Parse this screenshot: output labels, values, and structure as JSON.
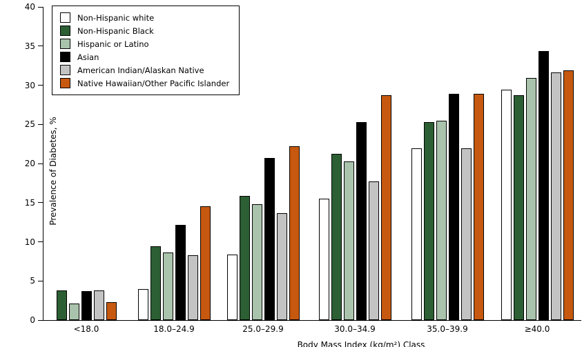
{
  "chart_data": {
    "type": "bar",
    "title": "",
    "ylabel": "Prevalence of Diabetes, %",
    "xlabel": "Body Mass Index (kg/m²) Class",
    "ylim": [
      0,
      40
    ],
    "yticks": [
      0,
      5,
      10,
      15,
      20,
      25,
      30,
      35,
      40
    ],
    "grid": false,
    "legend_position": "top-left",
    "bar_outline_color": "#000000",
    "categories": [
      "<18.0",
      "18.0–24.9",
      "25.0–29.9",
      "30.0–34.9",
      "35.0–39.9",
      "≥40.0"
    ],
    "series": [
      {
        "name": "Non-Hispanic white",
        "color": "#ffffff",
        "values": [
          null,
          4.0,
          8.4,
          15.5,
          21.9,
          29.4
        ]
      },
      {
        "name": "Non-Hispanic Black",
        "color": "#2c5f33",
        "values": [
          3.8,
          9.4,
          15.9,
          21.2,
          25.3,
          28.7
        ]
      },
      {
        "name": "Hispanic or Latino",
        "color": "#aac3ac",
        "values": [
          2.1,
          8.6,
          14.8,
          20.3,
          25.5,
          30.9
        ]
      },
      {
        "name": "Asian",
        "color": "#000000",
        "values": [
          3.7,
          12.2,
          20.7,
          25.3,
          28.9,
          34.4
        ]
      },
      {
        "name": "American Indian/Alaskan Native",
        "color": "#c3c3c3",
        "values": [
          3.8,
          8.3,
          13.7,
          17.7,
          21.9,
          31.6
        ]
      },
      {
        "name": "Native Hawaiian/Other Pacific Islander",
        "color": "#c6590f",
        "values": [
          2.3,
          14.5,
          22.2,
          28.7,
          28.9,
          31.9
        ]
      }
    ]
  }
}
